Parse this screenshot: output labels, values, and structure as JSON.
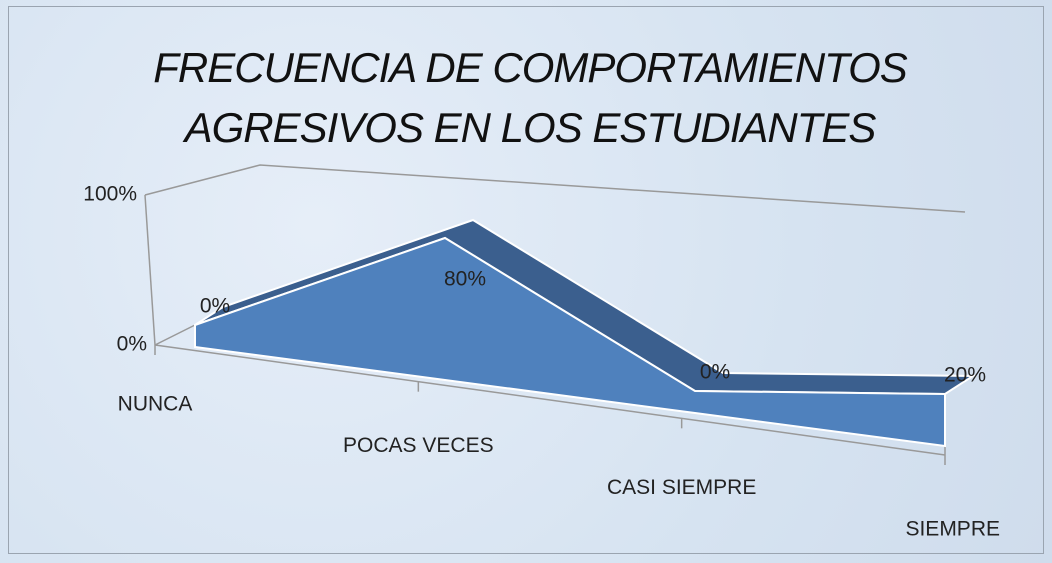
{
  "chart_data": {
    "type": "area",
    "title": "FRECUENCIA DE COMPORTAMIENTOS AGRESIVOS EN LOS ESTUDIANTES",
    "categories": [
      "NUNCA",
      "POCAS VECES",
      "CASI SIEMPRE",
      "SIEMPRE"
    ],
    "values": [
      0,
      80,
      0,
      20
    ],
    "value_labels": [
      "0%",
      "80%",
      "0%",
      "20%"
    ],
    "color": "#4f81bd",
    "ylim": [
      0,
      100
    ],
    "yticks": [
      {
        "value": 0,
        "label": "0%"
      },
      {
        "value": 100,
        "label": "100%"
      }
    ]
  }
}
